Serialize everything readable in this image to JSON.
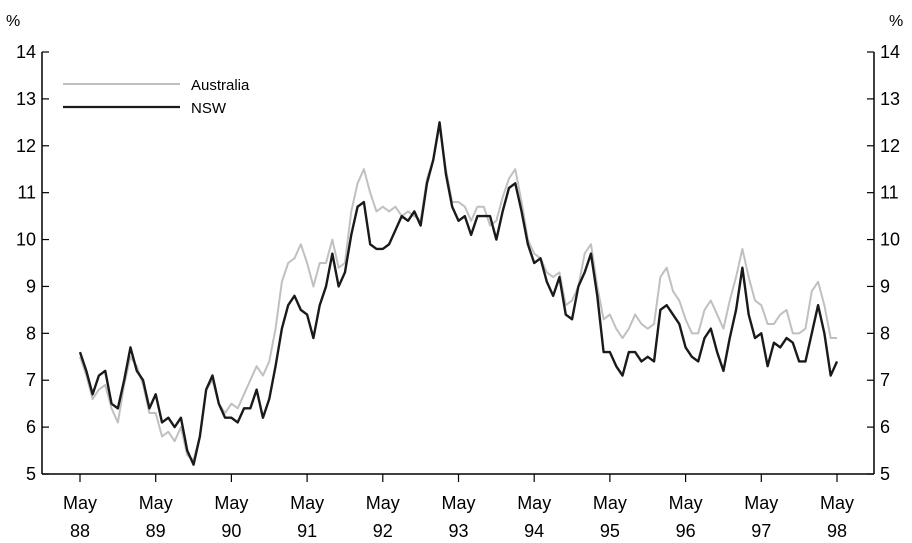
{
  "chart_data": {
    "type": "line",
    "title": "",
    "xlabel": "",
    "ylabel": "%",
    "ylabel_right": "%",
    "ylim": [
      5,
      14
    ],
    "yticks": [
      5,
      6,
      7,
      8,
      9,
      10,
      11,
      12,
      13,
      14
    ],
    "grid": false,
    "legend_position": "top-left",
    "x_start": "May 88",
    "x_step": "month",
    "x_ticks": [
      {
        "month": "May",
        "year": "88"
      },
      {
        "month": "May",
        "year": "89"
      },
      {
        "month": "May",
        "year": "90"
      },
      {
        "month": "May",
        "year": "91"
      },
      {
        "month": "May",
        "year": "92"
      },
      {
        "month": "May",
        "year": "93"
      },
      {
        "month": "May",
        "year": "94"
      },
      {
        "month": "May",
        "year": "95"
      },
      {
        "month": "May",
        "year": "96"
      },
      {
        "month": "May",
        "year": "97"
      },
      {
        "month": "May",
        "year": "98"
      }
    ],
    "series": [
      {
        "name": "Australia",
        "color": "#c0c0c0",
        "values": [
          7.5,
          7.1,
          6.6,
          6.8,
          6.9,
          6.4,
          6.1,
          6.9,
          7.5,
          7.3,
          6.9,
          6.3,
          6.3,
          5.8,
          5.9,
          5.7,
          6.0,
          5.4,
          5.3,
          5.8,
          6.8,
          7.0,
          6.5,
          6.3,
          6.5,
          6.4,
          6.7,
          7.0,
          7.3,
          7.1,
          7.4,
          8.1,
          9.1,
          9.5,
          9.6,
          9.9,
          9.5,
          9.0,
          9.5,
          9.5,
          10.0,
          9.4,
          9.5,
          10.6,
          11.2,
          11.5,
          11.0,
          10.6,
          10.7,
          10.6,
          10.7,
          10.5,
          10.6,
          10.5,
          10.4,
          11.3,
          11.7,
          12.4,
          11.5,
          10.8,
          10.8,
          10.7,
          10.4,
          10.7,
          10.7,
          10.3,
          10.4,
          10.9,
          11.3,
          11.5,
          10.8,
          10.0,
          9.7,
          9.6,
          9.3,
          9.2,
          9.3,
          8.6,
          8.7,
          9.0,
          9.7,
          9.9,
          9.0,
          8.3,
          8.4,
          8.1,
          7.9,
          8.1,
          8.4,
          8.2,
          8.1,
          8.2,
          9.2,
          9.4,
          8.9,
          8.7,
          8.3,
          8.0,
          8.0,
          8.5,
          8.7,
          8.4,
          8.1,
          8.7,
          9.2,
          9.8,
          9.2,
          8.7,
          8.6,
          8.2,
          8.2,
          8.4,
          8.5,
          8.0,
          8.0,
          8.1,
          8.9,
          9.1,
          8.6,
          7.9,
          7.9
        ]
      },
      {
        "name": "NSW",
        "color": "#1a1a1a",
        "values": [
          7.6,
          7.2,
          6.7,
          7.1,
          7.2,
          6.5,
          6.4,
          7.0,
          7.7,
          7.2,
          7.0,
          6.4,
          6.7,
          6.1,
          6.2,
          6.0,
          6.2,
          5.5,
          5.2,
          5.8,
          6.8,
          7.1,
          6.5,
          6.2,
          6.2,
          6.1,
          6.4,
          6.4,
          6.8,
          6.2,
          6.6,
          7.3,
          8.1,
          8.6,
          8.8,
          8.5,
          8.4,
          7.9,
          8.6,
          9.0,
          9.7,
          9.0,
          9.3,
          10.1,
          10.7,
          10.8,
          9.9,
          9.8,
          9.8,
          9.9,
          10.2,
          10.5,
          10.4,
          10.6,
          10.3,
          11.2,
          11.7,
          12.5,
          11.4,
          10.7,
          10.4,
          10.5,
          10.1,
          10.5,
          10.5,
          10.5,
          10.0,
          10.6,
          11.1,
          11.2,
          10.6,
          9.9,
          9.5,
          9.6,
          9.1,
          8.8,
          9.2,
          8.4,
          8.3,
          9.0,
          9.3,
          9.7,
          8.8,
          7.6,
          7.6,
          7.3,
          7.1,
          7.6,
          7.6,
          7.4,
          7.5,
          7.4,
          8.5,
          8.6,
          8.4,
          8.2,
          7.7,
          7.5,
          7.4,
          7.9,
          8.1,
          7.6,
          7.2,
          7.9,
          8.5,
          9.4,
          8.4,
          7.9,
          8.0,
          7.3,
          7.8,
          7.7,
          7.9,
          7.8,
          7.4,
          7.4,
          8.0,
          8.6,
          8.0,
          7.1,
          7.4
        ]
      }
    ]
  }
}
